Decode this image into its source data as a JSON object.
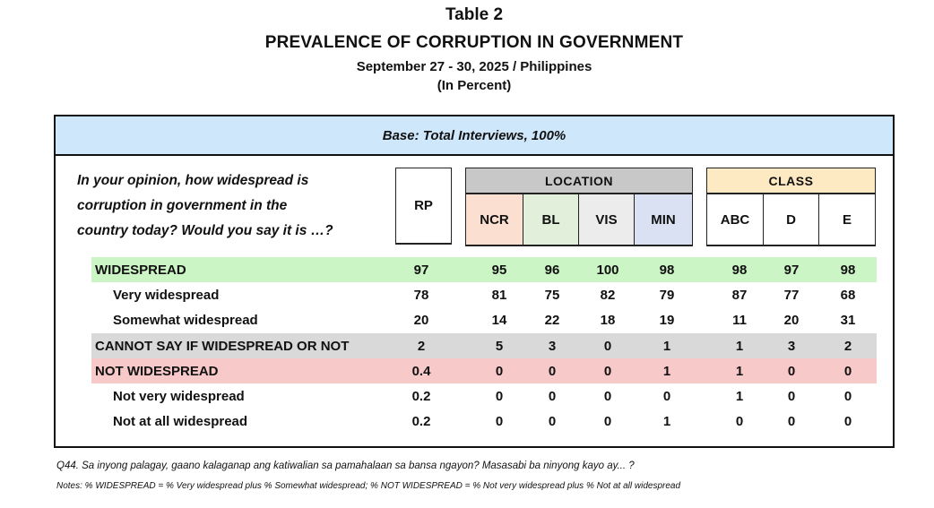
{
  "header": {
    "table_number": "Table 2",
    "title": "PREVALENCE OF CORRUPTION IN GOVERNMENT",
    "subtitle": "September 27 - 30, 2025 / Philippines",
    "unit": "(In Percent)"
  },
  "table": {
    "base": "Base: Total Interviews, 100%",
    "question": [
      "In your opinion, how widespread is",
      "corruption in government in the",
      "country today? Would you say it is …?"
    ],
    "rp_label": "RP",
    "location": {
      "label": "LOCATION",
      "columns": [
        "NCR",
        "BL",
        "VIS",
        "MIN"
      ],
      "colors": [
        "#fbe0d2",
        "#e2efda",
        "#ececec",
        "#d9e1f2"
      ]
    },
    "class": {
      "label": "CLASS",
      "columns": [
        "ABC",
        "D",
        "E"
      ]
    },
    "rows": [
      {
        "label": "WIDESPREAD",
        "type": "widespread",
        "values": [
          "97",
          "95",
          "96",
          "100",
          "98",
          "98",
          "97",
          "98"
        ]
      },
      {
        "label": "Very widespread",
        "type": "sub",
        "values": [
          "78",
          "81",
          "75",
          "82",
          "79",
          "87",
          "77",
          "68"
        ]
      },
      {
        "label": "Somewhat widespread",
        "type": "sub",
        "values": [
          "20",
          "14",
          "22",
          "18",
          "19",
          "11",
          "20",
          "31"
        ]
      },
      {
        "label": "CANNOT SAY IF WIDESPREAD OR NOT",
        "type": "cannot",
        "values": [
          "2",
          "5",
          "3",
          "0",
          "1",
          "1",
          "3",
          "2"
        ]
      },
      {
        "label": "NOT WIDESPREAD",
        "type": "notw",
        "values": [
          "0.4",
          "0",
          "0",
          "0",
          "1",
          "1",
          "0",
          "0"
        ]
      },
      {
        "label": "Not very widespread",
        "type": "sub",
        "values": [
          "0.2",
          "0",
          "0",
          "0",
          "0",
          "1",
          "0",
          "0"
        ]
      },
      {
        "label": "Not at all widespread",
        "type": "sub",
        "values": [
          "0.2",
          "0",
          "0",
          "0",
          "1",
          "0",
          "0",
          "0"
        ]
      }
    ]
  },
  "footer": {
    "question_tagalog": "Q44. Sa inyong palagay, gaano kalaganap ang katiwalian sa pamahalaan sa bansa ngayon? Masasabi ba ninyong kayo ay... ?",
    "notes": "Notes: % WIDESPREAD = % Very widespread plus % Somewhat widespread; % NOT WIDESPREAD = % Not very widespread plus % Not at all widespread"
  }
}
